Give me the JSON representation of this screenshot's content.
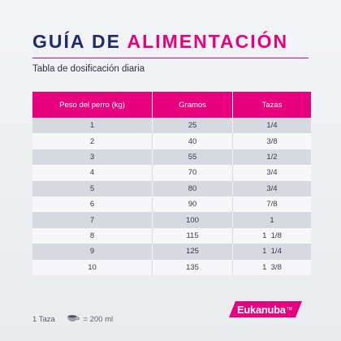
{
  "header": {
    "title_part1": "GUÍA DE ",
    "title_part2": "ALIMENTACIÓN",
    "subtitle": "Tabla de dosificación diaria"
  },
  "table": {
    "columns": [
      "Peso del perro (kg)",
      "Gramos",
      "Tazas"
    ],
    "rows": [
      [
        "1",
        "25",
        "1/4"
      ],
      [
        "2",
        "40",
        "3/8"
      ],
      [
        "3",
        "55",
        "1/2"
      ],
      [
        "4",
        "70",
        "3/4"
      ],
      [
        "5",
        "80",
        "3/4"
      ],
      [
        "6",
        "90",
        "7/8"
      ],
      [
        "7",
        "100",
        "1"
      ],
      [
        "8",
        "115",
        "1  1/8"
      ],
      [
        "9",
        "125",
        "1  1/4"
      ],
      [
        "10",
        "135",
        "1  3/8"
      ]
    ]
  },
  "footnote": {
    "left": "1 Taza",
    "right": "= 200 ml",
    "icon": "cup-icon"
  },
  "brand": {
    "logo_text": "Eukanuba",
    "trademark": "TM"
  },
  "colors": {
    "accent": "#e6007e",
    "title_dark": "#1f2b6b"
  }
}
